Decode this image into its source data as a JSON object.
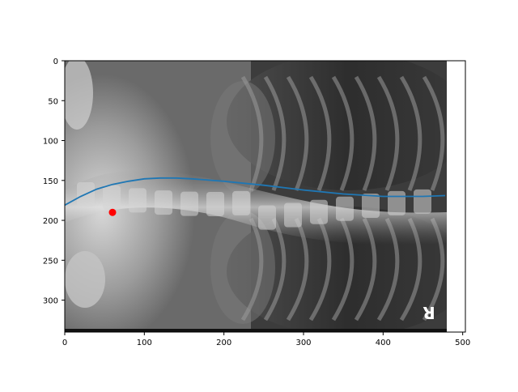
{
  "chart_data": {
    "type": "scatter",
    "title": "",
    "xlabel": "",
    "ylabel": "",
    "xlim": [
      0,
      480
    ],
    "ylim": [
      340,
      0
    ],
    "y_axis_inverted": true,
    "grid": false,
    "background_image": "chest-xray",
    "x_ticks": [
      0,
      100,
      200,
      300,
      400,
      500
    ],
    "y_ticks": [
      0,
      50,
      100,
      150,
      200,
      250,
      300
    ],
    "x_tick_labels": [
      "0",
      "100",
      "200",
      "300",
      "400",
      "500"
    ],
    "y_tick_labels": [
      "0",
      "50",
      "100",
      "150",
      "200",
      "250",
      "300"
    ],
    "series": [
      {
        "kind": "line",
        "color": "#1f77b4",
        "x": [
          0,
          20,
          40,
          60,
          80,
          100,
          120,
          140,
          160,
          200,
          250,
          300,
          350,
          400,
          450,
          478
        ],
        "y": [
          181,
          170,
          161,
          155,
          151,
          148,
          147,
          147,
          148,
          151,
          156,
          162,
          167,
          170,
          170,
          169
        ]
      },
      {
        "kind": "point",
        "color": "#ff0000",
        "x": [
          60
        ],
        "y": [
          190
        ]
      }
    ],
    "image_marker_text": "R"
  }
}
